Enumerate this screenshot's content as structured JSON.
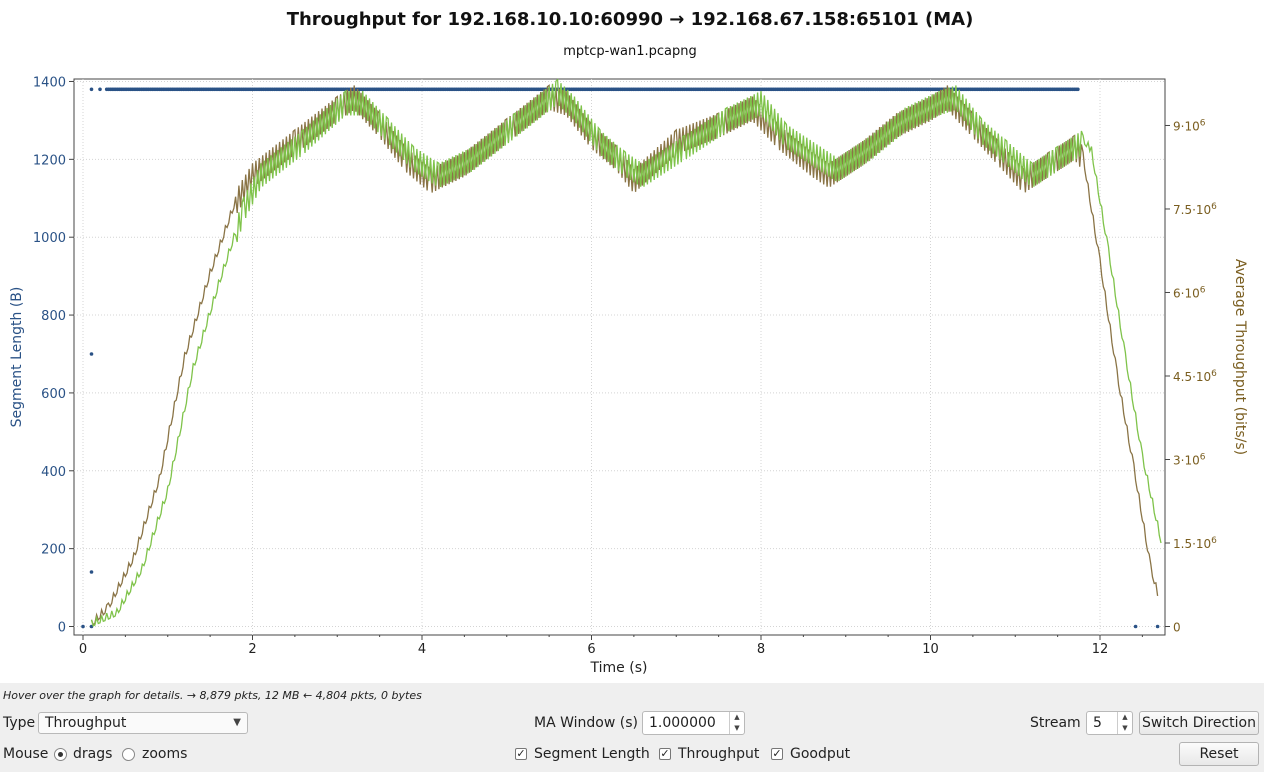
{
  "chart_data": {
    "type": "line",
    "title": "Throughput for 192.168.10.10:60990 → 192.168.67.158:65101 (MA)",
    "subtitle": "mptcp-wan1.pcapng",
    "xlabel": "Time (s)",
    "ylabel_left": "Segment Length (B)",
    "ylabel_right": "Average Throughput (bits/s)",
    "xlim": [
      -0.1,
      12.75
    ],
    "ylim_left": [
      -10,
      1400
    ],
    "ylim_right": [
      0,
      9800000
    ],
    "x_ticks": [
      "0",
      "2",
      "4",
      "6",
      "8",
      "10",
      "12"
    ],
    "y_left_ticks": [
      "0",
      "200",
      "400",
      "600",
      "800",
      "1000",
      "1200",
      "1400"
    ],
    "y_right_ticks": [
      {
        "value": 0,
        "base": "0",
        "exp": ""
      },
      {
        "value": 1500000,
        "base": "1.5·10",
        "exp": "6"
      },
      {
        "value": 3000000,
        "base": "3·10",
        "exp": "6"
      },
      {
        "value": 4500000,
        "base": "4.5·10",
        "exp": "6"
      },
      {
        "value": 6000000,
        "base": "6·10",
        "exp": "6"
      },
      {
        "value": 7500000,
        "base": "7.5·10",
        "exp": "6"
      },
      {
        "value": 9000000,
        "base": "9·10",
        "exp": "6"
      }
    ],
    "grid": true,
    "series": [
      {
        "name": "Segment Length",
        "axis": "left",
        "style": "dots",
        "color": "#2a5286",
        "dense_range": [
          0.28,
          11.75
        ],
        "constant_value": 1380,
        "points": [
          [
            0.0,
            0
          ],
          [
            0.1,
            0
          ],
          [
            0.1,
            1380
          ],
          [
            0.1,
            700
          ],
          [
            0.1,
            140
          ],
          [
            0.2,
            1380
          ],
          [
            12.42,
            0
          ],
          [
            12.68,
            0
          ]
        ]
      },
      {
        "name": "Throughput",
        "axis": "right",
        "style": "line",
        "color": "#8a7446",
        "points": [
          [
            0.1,
            0
          ],
          [
            0.3,
            300000
          ],
          [
            0.6,
            1200000
          ],
          [
            0.9,
            2600000
          ],
          [
            1.2,
            4800000
          ],
          [
            1.5,
            6300000
          ],
          [
            1.8,
            7600000
          ],
          [
            2.0,
            8100000
          ],
          [
            2.5,
            8700000
          ],
          [
            3.0,
            9300000
          ],
          [
            3.2,
            9500000
          ],
          [
            3.5,
            9000000
          ],
          [
            3.8,
            8400000
          ],
          [
            4.1,
            8000000
          ],
          [
            4.5,
            8300000
          ],
          [
            5.0,
            8900000
          ],
          [
            5.5,
            9500000
          ],
          [
            5.7,
            9400000
          ],
          [
            6.0,
            8800000
          ],
          [
            6.3,
            8400000
          ],
          [
            6.5,
            8000000
          ],
          [
            7.0,
            8700000
          ],
          [
            7.5,
            9000000
          ],
          [
            7.9,
            9300000
          ],
          [
            8.2,
            8800000
          ],
          [
            8.6,
            8300000
          ],
          [
            8.8,
            8100000
          ],
          [
            9.2,
            8500000
          ],
          [
            9.6,
            9000000
          ],
          [
            10.0,
            9300000
          ],
          [
            10.2,
            9500000
          ],
          [
            10.5,
            9000000
          ],
          [
            10.8,
            8500000
          ],
          [
            11.1,
            8000000
          ],
          [
            11.4,
            8300000
          ],
          [
            11.7,
            8600000
          ],
          [
            11.8,
            8400000
          ],
          [
            12.0,
            6500000
          ],
          [
            12.2,
            4500000
          ],
          [
            12.4,
            2800000
          ],
          [
            12.6,
            1000000
          ],
          [
            12.68,
            550000
          ]
        ]
      },
      {
        "name": "Goodput",
        "axis": "right",
        "style": "line",
        "color": "#7fc34a",
        "points": [
          [
            0.1,
            0
          ],
          [
            0.4,
            200000
          ],
          [
            0.7,
            1000000
          ],
          [
            1.0,
            2400000
          ],
          [
            1.3,
            4600000
          ],
          [
            1.6,
            6100000
          ],
          [
            1.9,
            7500000
          ],
          [
            2.1,
            8100000
          ],
          [
            2.6,
            8700000
          ],
          [
            3.1,
            9400000
          ],
          [
            3.3,
            9400000
          ],
          [
            3.6,
            8900000
          ],
          [
            3.9,
            8400000
          ],
          [
            4.2,
            8100000
          ],
          [
            4.6,
            8400000
          ],
          [
            5.1,
            9000000
          ],
          [
            5.6,
            9600000
          ],
          [
            5.8,
            9300000
          ],
          [
            6.1,
            8700000
          ],
          [
            6.4,
            8300000
          ],
          [
            6.6,
            8100000
          ],
          [
            7.1,
            8600000
          ],
          [
            7.6,
            9100000
          ],
          [
            8.0,
            9400000
          ],
          [
            8.3,
            8800000
          ],
          [
            8.7,
            8400000
          ],
          [
            8.9,
            8200000
          ],
          [
            9.3,
            8600000
          ],
          [
            9.7,
            9100000
          ],
          [
            10.1,
            9400000
          ],
          [
            10.3,
            9500000
          ],
          [
            10.6,
            8900000
          ],
          [
            10.9,
            8500000
          ],
          [
            11.2,
            8100000
          ],
          [
            11.5,
            8400000
          ],
          [
            11.8,
            8700000
          ],
          [
            11.9,
            8500000
          ],
          [
            12.1,
            6700000
          ],
          [
            12.3,
            4800000
          ],
          [
            12.5,
            3000000
          ],
          [
            12.72,
            1500000
          ]
        ]
      }
    ]
  },
  "status": {
    "hint": "Hover over the graph for details. → 8,879 pkts, 12 MB ← 4,804 pkts, 0 bytes"
  },
  "controls": {
    "type_label": "Type",
    "type_value": "Throughput",
    "ma_window_label": "MA Window (s)",
    "ma_window_value": "1.000000",
    "stream_label": "Stream",
    "stream_value": "5",
    "switch_direction": "Switch Direction",
    "mouse_label": "Mouse",
    "drags_label": "drags",
    "zooms_label": "zooms",
    "mouse_mode": "drags",
    "segment_length_label": "Segment Length",
    "segment_length_checked": true,
    "throughput_label": "Throughput",
    "throughput_checked": true,
    "goodput_label": "Goodput",
    "goodput_checked": true,
    "reset": "Reset"
  }
}
